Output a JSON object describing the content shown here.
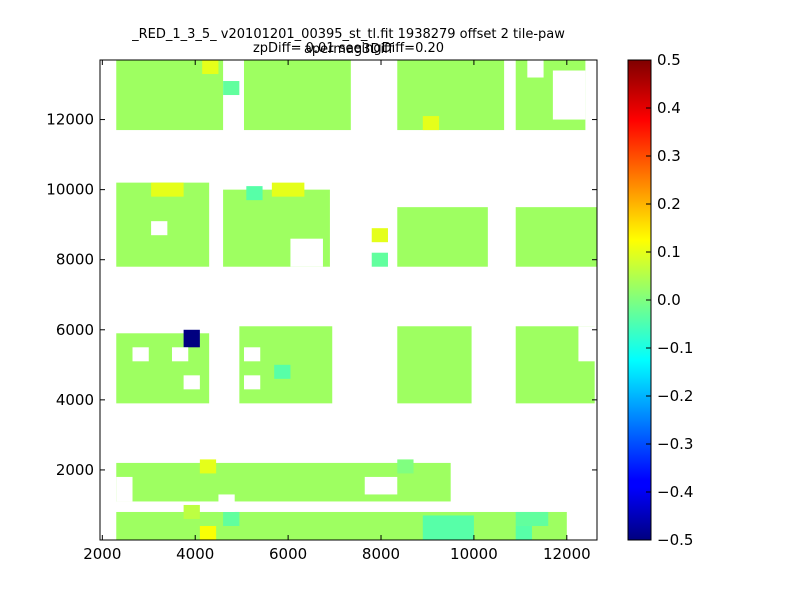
{
  "chart_data": {
    "type": "heatmap",
    "title": "_RED_1_3_5_ v20101201_00395_st_tl.fit 1938279 offset 2 tile-paw apermag3Diff",
    "subtitle": "zpDiff= 0.01 seeingDiff=0.20",
    "xlim": [
      1950,
      12650
    ],
    "ylim": [
      0,
      13700
    ],
    "x_ticks": [
      2000,
      4000,
      6000,
      8000,
      10000,
      12000
    ],
    "y_ticks": [
      2000,
      4000,
      6000,
      8000,
      10000,
      12000
    ],
    "x_tick_labels": [
      "2000",
      "4000",
      "6000",
      "8000",
      "10000",
      "12000"
    ],
    "y_tick_labels": [
      "2000",
      "4000",
      "6000",
      "8000",
      "10000",
      "12000"
    ],
    "cell_size": [
      350,
      400
    ],
    "colorbar": {
      "colormap": "jet",
      "range": [
        -0.5,
        0.5
      ],
      "ticks": [
        0.5,
        0.4,
        0.3,
        0.2,
        0.1,
        0.0,
        -0.1,
        -0.2,
        -0.3,
        -0.4,
        -0.5
      ],
      "tick_labels": [
        "0.5",
        "0.4",
        "0.3",
        "0.2",
        "0.1",
        "0.0",
        "−0.1",
        "−0.2",
        "−0.3",
        "−0.4",
        "−0.5"
      ]
    },
    "grid": false,
    "default_value": 0.03,
    "cells": [
      {
        "x": 2300,
        "y": 1100,
        "w": 7200,
        "h": 1100,
        "v": 0.03
      },
      {
        "x": 2300,
        "y": 0,
        "w": 9700,
        "h": 800,
        "v": 0.03
      },
      {
        "x": 3750,
        "y": 600,
        "w": 350,
        "h": 400,
        "v": 0.06
      },
      {
        "x": 4100,
        "y": 1900,
        "w": 350,
        "h": 400,
        "v": 0.1
      },
      {
        "x": 4100,
        "y": 0,
        "w": 350,
        "h": 400,
        "v": 0.12
      },
      {
        "x": 8350,
        "y": 1900,
        "w": 350,
        "h": 400,
        "v": 0.0
      },
      {
        "x": 8900,
        "y": 0,
        "w": 1100,
        "h": 700,
        "v": -0.04
      },
      {
        "x": 10900,
        "y": 0,
        "w": 350,
        "h": 400,
        "v": -0.04
      },
      {
        "x": 10900,
        "y": 400,
        "w": 700,
        "h": 400,
        "v": -0.03
      },
      {
        "x": 4600,
        "y": 400,
        "w": 350,
        "h": 400,
        "v": -0.03
      },
      {
        "x": 2300,
        "y": 3900,
        "w": 2000,
        "h": 2000,
        "v": 0.03
      },
      {
        "x": 3750,
        "y": 5500,
        "w": 350,
        "h": 500,
        "v": -0.5
      },
      {
        "x": 4950,
        "y": 3900,
        "w": 2000,
        "h": 2200,
        "v": 0.03
      },
      {
        "x": 5700,
        "y": 4600,
        "w": 350,
        "h": 400,
        "v": -0.04
      },
      {
        "x": 8350,
        "y": 3900,
        "w": 1600,
        "h": 2200,
        "v": 0.03
      },
      {
        "x": 10900,
        "y": 3900,
        "w": 1700,
        "h": 2200,
        "v": 0.03
      },
      {
        "x": 2300,
        "y": 7800,
        "w": 2000,
        "h": 2400,
        "v": 0.03
      },
      {
        "x": 3050,
        "y": 9800,
        "w": 700,
        "h": 400,
        "v": 0.1
      },
      {
        "x": 4600,
        "y": 7800,
        "w": 2300,
        "h": 2200,
        "v": 0.03
      },
      {
        "x": 5100,
        "y": 9700,
        "w": 350,
        "h": 400,
        "v": -0.04
      },
      {
        "x": 5650,
        "y": 9800,
        "w": 700,
        "h": 400,
        "v": 0.1
      },
      {
        "x": 7800,
        "y": 8500,
        "w": 350,
        "h": 400,
        "v": 0.1
      },
      {
        "x": 7800,
        "y": 7800,
        "w": 350,
        "h": 400,
        "v": -0.03
      },
      {
        "x": 8350,
        "y": 7800,
        "w": 1950,
        "h": 1700,
        "v": 0.03
      },
      {
        "x": 10900,
        "y": 7800,
        "w": 1750,
        "h": 1700,
        "v": 0.03
      },
      {
        "x": 2300,
        "y": 11700,
        "w": 2300,
        "h": 2000,
        "v": 0.03
      },
      {
        "x": 4150,
        "y": 13300,
        "w": 350,
        "h": 400,
        "v": 0.1
      },
      {
        "x": 5050,
        "y": 11700,
        "w": 2300,
        "h": 2000,
        "v": 0.03
      },
      {
        "x": 4600,
        "y": 12700,
        "w": 350,
        "h": 400,
        "v": -0.03
      },
      {
        "x": 8350,
        "y": 11700,
        "w": 2300,
        "h": 2000,
        "v": 0.03
      },
      {
        "x": 8900,
        "y": 11700,
        "w": 350,
        "h": 400,
        "v": 0.1
      },
      {
        "x": 10900,
        "y": 11700,
        "w": 1500,
        "h": 2000,
        "v": 0.03
      }
    ],
    "blank_areas": [
      {
        "x": 2300,
        "y": 1100,
        "w": 350,
        "h": 700
      },
      {
        "x": 4500,
        "y": 800,
        "w": 350,
        "h": 500
      },
      {
        "x": 7650,
        "y": 1300,
        "w": 700,
        "h": 500
      },
      {
        "x": 9600,
        "y": 1300,
        "w": 400,
        "h": 500
      },
      {
        "x": 2650,
        "y": 5100,
        "w": 350,
        "h": 400
      },
      {
        "x": 3500,
        "y": 5100,
        "w": 350,
        "h": 400
      },
      {
        "x": 3750,
        "y": 4300,
        "w": 350,
        "h": 400
      },
      {
        "x": 5050,
        "y": 5100,
        "w": 350,
        "h": 400
      },
      {
        "x": 5050,
        "y": 4300,
        "w": 350,
        "h": 400
      },
      {
        "x": 10500,
        "y": 5100,
        "w": 350,
        "h": 400
      },
      {
        "x": 12250,
        "y": 5100,
        "w": 400,
        "h": 1000
      },
      {
        "x": 3050,
        "y": 8700,
        "w": 350,
        "h": 400
      },
      {
        "x": 6050,
        "y": 7800,
        "w": 700,
        "h": 800
      },
      {
        "x": 11700,
        "y": 12000,
        "w": 700,
        "h": 1400
      },
      {
        "x": 11150,
        "y": 13200,
        "w": 350,
        "h": 500
      }
    ]
  }
}
